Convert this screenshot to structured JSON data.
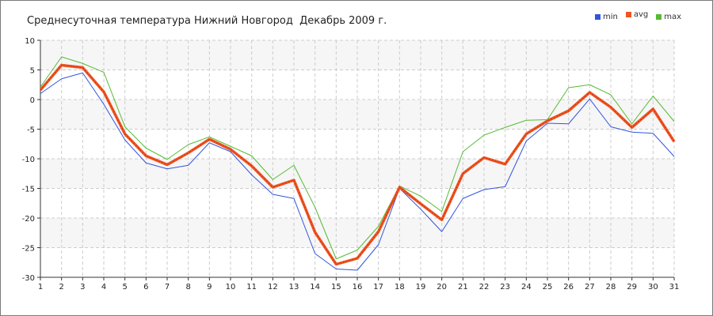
{
  "chart_data": {
    "type": "line",
    "title": "Среднесуточная температура Нижний Новгород  Декабрь 2009 г.",
    "xlabel": "",
    "ylabel": "",
    "x": [
      1,
      2,
      3,
      4,
      5,
      6,
      7,
      8,
      9,
      10,
      11,
      12,
      13,
      14,
      15,
      16,
      17,
      18,
      19,
      20,
      21,
      22,
      23,
      24,
      25,
      26,
      27,
      28,
      29,
      30,
      31
    ],
    "x_ticks": [
      "1",
      "2",
      "3",
      "4",
      "5",
      "6",
      "7",
      "8",
      "9",
      "10",
      "11",
      "12",
      "13",
      "14",
      "15",
      "16",
      "17",
      "18",
      "19",
      "20",
      "21",
      "22",
      "23",
      "24",
      "25",
      "26",
      "27",
      "28",
      "29",
      "30",
      "31"
    ],
    "ylim": [
      -30,
      10
    ],
    "y_ticks": [
      10,
      5,
      0,
      -5,
      -10,
      -15,
      -20,
      -25,
      -30
    ],
    "grid": true,
    "legend_position": "top-right",
    "series": [
      {
        "name": "min",
        "color": "#3355dd",
        "values": [
          1.0,
          3.5,
          4.5,
          -0.8,
          -6.8,
          -10.7,
          -11.7,
          -11.1,
          -7.3,
          -8.8,
          -12.7,
          -16.0,
          -16.7,
          -26.0,
          -28.6,
          -28.8,
          -24.5,
          -15.0,
          -18.5,
          -22.3,
          -16.7,
          -15.2,
          -14.7,
          -7.0,
          -4.0,
          -4.1,
          0.1,
          -4.6,
          -5.5,
          -5.7,
          -9.6
        ]
      },
      {
        "name": "avg",
        "color": "#ee5522",
        "values": [
          1.6,
          5.8,
          5.4,
          1.3,
          -5.8,
          -9.5,
          -11.0,
          -9.0,
          -6.7,
          -8.4,
          -11.2,
          -14.8,
          -13.6,
          -22.4,
          -27.8,
          -26.8,
          -22.3,
          -14.8,
          -17.6,
          -20.3,
          -12.5,
          -9.8,
          -10.9,
          -5.8,
          -3.6,
          -1.9,
          1.2,
          -1.3,
          -4.7,
          -1.6,
          -7.1
        ]
      },
      {
        "name": "max",
        "color": "#55bb33",
        "values": [
          2.1,
          7.2,
          6.1,
          4.6,
          -4.6,
          -8.2,
          -10.1,
          -7.6,
          -6.3,
          -7.9,
          -9.5,
          -13.5,
          -11.1,
          -18.2,
          -26.9,
          -25.4,
          -21.4,
          -14.6,
          -16.3,
          -18.9,
          -8.8,
          -6.0,
          -4.7,
          -3.5,
          -3.4,
          2.0,
          2.5,
          0.8,
          -4.1,
          0.6,
          -3.7
        ]
      }
    ]
  }
}
